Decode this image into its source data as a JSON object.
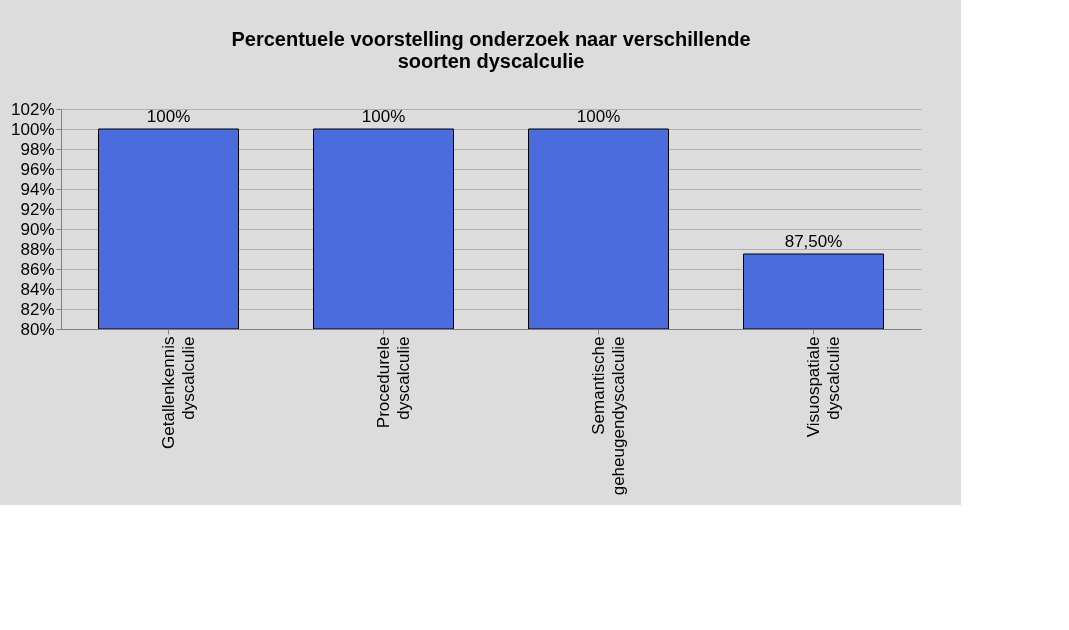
{
  "chart_data": {
    "type": "bar",
    "title": "Percentuele voorstelling onderzoek naar verschillende soorten dyscalculie",
    "categories": [
      "Getallenkennis dyscalculie",
      "Procedurele dyscalculie",
      "Semantische geheugendyscalculie",
      "Visuospatiale dyscalculie"
    ],
    "values": [
      100,
      100,
      100,
      87.5
    ],
    "value_labels": [
      "100%",
      "100%",
      "100%",
      "87,50%"
    ],
    "color": "#4a6cdc",
    "ylim": [
      80,
      102
    ],
    "yticks": [
      {
        "value": 80,
        "label": "80%"
      },
      {
        "value": 82,
        "label": "82%"
      },
      {
        "value": 84,
        "label": "84%"
      },
      {
        "value": 86,
        "label": "86%"
      },
      {
        "value": 88,
        "label": "88%"
      },
      {
        "value": 90,
        "label": "90%"
      },
      {
        "value": 92,
        "label": "92%"
      },
      {
        "value": 94,
        "label": "94%"
      },
      {
        "value": 96,
        "label": "96%"
      },
      {
        "value": 98,
        "label": "98%"
      },
      {
        "value": 100,
        "label": "100%"
      },
      {
        "value": 102,
        "label": "102%"
      }
    ],
    "grid": "y"
  }
}
